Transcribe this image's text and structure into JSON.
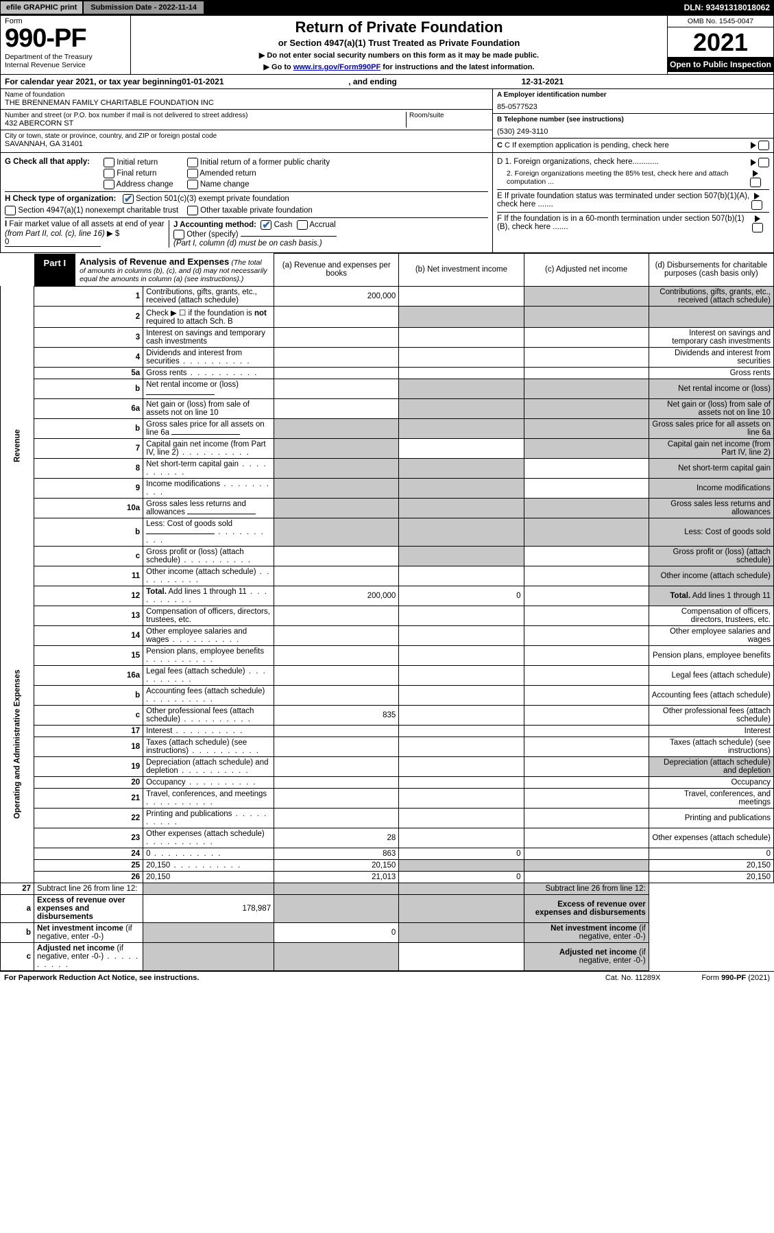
{
  "topbar": {
    "efile": "efile GRAPHIC print",
    "sub_label": "Submission Date - 2022-11-14",
    "dln": "DLN: 93491318018062"
  },
  "header": {
    "form_label": "Form",
    "form_number": "990-PF",
    "dept": "Department of the Treasury\nInternal Revenue Service",
    "title": "Return of Private Foundation",
    "subtitle": "or Section 4947(a)(1) Trust Treated as Private Foundation",
    "note1": "▶ Do not enter social security numbers on this form as it may be made public.",
    "note2_pre": "▶ Go to ",
    "note2_link": "www.irs.gov/Form990PF",
    "note2_post": " for instructions and the latest information.",
    "omb": "OMB No. 1545-0047",
    "year": "2021",
    "open": "Open to Public Inspection"
  },
  "calendar": {
    "pre": "For calendar year 2021, or tax year beginning ",
    "begin": "01-01-2021",
    "mid": ", and ending ",
    "end": "12-31-2021"
  },
  "id": {
    "name_label": "Name of foundation",
    "name": "THE BRENNEMAN FAMILY CHARITABLE FOUNDATION INC",
    "addr_label": "Number and street (or P.O. box number if mail is not delivered to street address)",
    "addr": "432 ABERCORN ST",
    "room_label": "Room/suite",
    "room": "",
    "city_label": "City or town, state or province, country, and ZIP or foreign postal code",
    "city": "SAVANNAH, GA  31401",
    "a_label": "A Employer identification number",
    "ein": "85-0577523",
    "b_label": "B Telephone number (see instructions)",
    "phone": "(530) 249-3110",
    "c_label": "C If exemption application is pending, check here"
  },
  "opts": {
    "g_label": "G Check all that apply:",
    "g1": "Initial return",
    "g2": "Final return",
    "g3": "Address change",
    "g4": "Initial return of a former public charity",
    "g5": "Amended return",
    "g6": "Name change",
    "h_label": "H Check type of organization:",
    "h1": "Section 501(c)(3) exempt private foundation",
    "h2": "Section 4947(a)(1) nonexempt charitable trust",
    "h3": "Other taxable private foundation",
    "i_label": "I Fair market value of all assets at end of year (from Part II, col. (c), line 16) ▶ $",
    "i_val": "0",
    "j_label": "J Accounting method:",
    "j1": "Cash",
    "j2": "Accrual",
    "j3": "Other (specify)",
    "j_note": "(Part I, column (d) must be on cash basis.)",
    "d1": "D 1. Foreign organizations, check here............",
    "d2": "2. Foreign organizations meeting the 85% test, check here and attach computation ...",
    "e": "E  If private foundation status was terminated under section 507(b)(1)(A), check here .......",
    "f": "F  If the foundation is in a 60-month termination under section 507(b)(1)(B), check here .......",
    "h1_checked": true,
    "j1_checked": true
  },
  "part1": {
    "tab": "Part I",
    "title": "Analysis of Revenue and Expenses",
    "note": "(The total of amounts in columns (b), (c), and (d) may not necessarily equal the amounts in column (a) (see instructions).)",
    "col_a": "(a)  Revenue and expenses per books",
    "col_b": "(b)  Net investment income",
    "col_c": "(c)  Adjusted net income",
    "col_d": "(d)  Disbursements for charitable purposes (cash basis only)"
  },
  "sections": {
    "rev": "Revenue",
    "exp": "Operating and Administrative Expenses"
  },
  "rows": [
    {
      "n": "1",
      "d": "Contributions, gifts, grants, etc., received (attach schedule)",
      "a": "200,000",
      "bVoid": false,
      "cVoid": true,
      "dVoid": true
    },
    {
      "n": "2",
      "d": "Check ▶ ☐ if the foundation is <b>not</b> required to attach Sch. B",
      "noline": true
    },
    {
      "n": "3",
      "d": "Interest on savings and temporary cash investments"
    },
    {
      "n": "4",
      "d": "Dividends and interest from securities",
      "dots": true
    },
    {
      "n": "5a",
      "d": "Gross rents",
      "dots": true
    },
    {
      "n": "b",
      "d": "Net rental income or (loss)",
      "uline": true,
      "bVoid": true,
      "cVoid": true,
      "dVoid": true
    },
    {
      "n": "6a",
      "d": "Net gain or (loss) from sale of assets not on line 10",
      "bVoid": true,
      "cVoid": true,
      "dVoid": true
    },
    {
      "n": "b",
      "d": "Gross sales price for all assets on line 6a",
      "uline": true,
      "aVoid": true,
      "bVoid": true,
      "cVoid": true,
      "dVoid": true
    },
    {
      "n": "7",
      "d": "Capital gain net income (from Part IV, line 2)",
      "dots": true,
      "aVoid": true,
      "cVoid": true,
      "dVoid": true
    },
    {
      "n": "8",
      "d": "Net short-term capital gain",
      "dots": true,
      "aVoid": true,
      "bVoid": true,
      "dVoid": true
    },
    {
      "n": "9",
      "d": "Income modifications",
      "dots": true,
      "aVoid": true,
      "bVoid": true,
      "dVoid": true
    },
    {
      "n": "10a",
      "d": "Gross sales less returns and allowances",
      "uline": true,
      "aVoid": true,
      "bVoid": true,
      "cVoid": true,
      "dVoid": true
    },
    {
      "n": "b",
      "d": "Less: Cost of goods sold",
      "dots": true,
      "uline": true,
      "aVoid": true,
      "bVoid": true,
      "cVoid": true,
      "dVoid": true
    },
    {
      "n": "c",
      "d": "Gross profit or (loss) (attach schedule)",
      "dots": true,
      "bVoid": true,
      "dVoid": true
    },
    {
      "n": "11",
      "d": "Other income (attach schedule)",
      "dots": true,
      "dVoid": true
    },
    {
      "n": "12",
      "d": "<b>Total.</b> Add lines 1 through 11",
      "dots": true,
      "a": "200,000",
      "b": "0",
      "dVoid": true
    }
  ],
  "exprows": [
    {
      "n": "13",
      "d": "Compensation of officers, directors, trustees, etc."
    },
    {
      "n": "14",
      "d": "Other employee salaries and wages",
      "dots": true
    },
    {
      "n": "15",
      "d": "Pension plans, employee benefits",
      "dots": true
    },
    {
      "n": "16a",
      "d": "Legal fees (attach schedule)",
      "dots": true
    },
    {
      "n": "b",
      "d": "Accounting fees (attach schedule)",
      "dots": true
    },
    {
      "n": "c",
      "d": "Other professional fees (attach schedule)",
      "dots": true,
      "a": "835"
    },
    {
      "n": "17",
      "d": "Interest",
      "dots": true
    },
    {
      "n": "18",
      "d": "Taxes (attach schedule) (see instructions)",
      "dots": true
    },
    {
      "n": "19",
      "d": "Depreciation (attach schedule) and depletion",
      "dots": true,
      "dVoid": true
    },
    {
      "n": "20",
      "d": "Occupancy",
      "dots": true
    },
    {
      "n": "21",
      "d": "Travel, conferences, and meetings",
      "dots": true
    },
    {
      "n": "22",
      "d": "Printing and publications",
      "dots": true
    },
    {
      "n": "23",
      "d": "Other expenses (attach schedule)",
      "dots": true,
      "a": "28"
    },
    {
      "n": "24",
      "d": "0",
      "dots": true,
      "a": "863",
      "b": "0"
    },
    {
      "n": "25",
      "d": "20,150",
      "dots": true,
      "a": "20,150",
      "bVoid": true,
      "cVoid": true
    },
    {
      "n": "26",
      "d": "20,150",
      "a": "21,013",
      "b": "0"
    }
  ],
  "botrows": [
    {
      "n": "27",
      "d": "Subtract line 26 from line 12:",
      "aVoid": true,
      "bVoid": true,
      "cVoid": true,
      "dVoid": true
    },
    {
      "n": "a",
      "d": "<b>Excess of revenue over expenses and disbursements</b>",
      "a": "178,987",
      "bVoid": true,
      "cVoid": true,
      "dVoid": true
    },
    {
      "n": "b",
      "d": "<b>Net investment income</b> (if negative, enter -0-)",
      "aVoid": true,
      "b": "0",
      "cVoid": true,
      "dVoid": true
    },
    {
      "n": "c",
      "d": "<b>Adjusted net income</b> (if negative, enter -0-)",
      "dots": true,
      "aVoid": true,
      "bVoid": true,
      "dVoid": true
    }
  ],
  "footer": {
    "pra": "For Paperwork Reduction Act Notice, see instructions.",
    "cat": "Cat. No. 11289X",
    "form": "Form 990-PF (2021)"
  },
  "colors": {
    "void": "#c8c8c8",
    "link": "#0000cc",
    "check": "#2a6db0"
  }
}
